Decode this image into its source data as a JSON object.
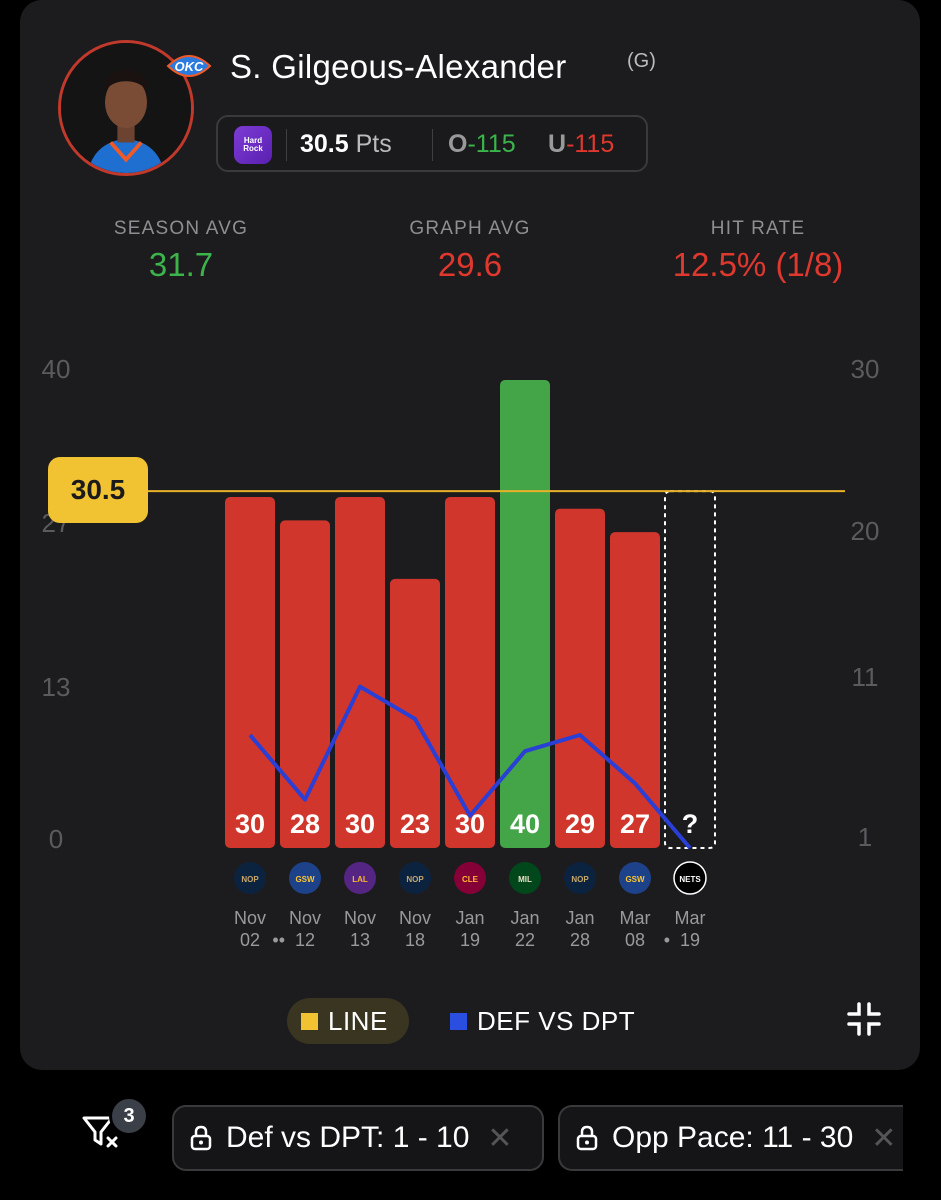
{
  "player": {
    "name": "S. Gilgeous-Alexander",
    "position": "(G)",
    "team_logo_text": "OKC"
  },
  "prop": {
    "sportsbook_logo_text": "Hard Rock",
    "line": "30.5",
    "stat": "Pts",
    "over_letter": "O",
    "over_odds": "-115",
    "under_letter": "U",
    "under_odds": "-115"
  },
  "stats": {
    "season_avg_label": "SEASON AVG",
    "season_avg_value": "31.7",
    "graph_avg_label": "GRAPH AVG",
    "graph_avg_value": "29.6",
    "hit_rate_label": "HIT RATE",
    "hit_rate_value": "12.5% (1/8)"
  },
  "chart_data": {
    "type": "bar",
    "categories": [
      "Nov 02",
      "Nov 12",
      "Nov 13",
      "Nov 18",
      "Jan 19",
      "Jan 22",
      "Jan 28",
      "Mar 08",
      "Mar 19"
    ],
    "dates": [
      {
        "month": "Nov",
        "day": "02",
        "dots": ""
      },
      {
        "month": "Nov",
        "day": "12",
        "dots": "••"
      },
      {
        "month": "Nov",
        "day": "13",
        "dots": ""
      },
      {
        "month": "Nov",
        "day": "18",
        "dots": ""
      },
      {
        "month": "Jan",
        "day": "19",
        "dots": ""
      },
      {
        "month": "Jan",
        "day": "22",
        "dots": ""
      },
      {
        "month": "Jan",
        "day": "28",
        "dots": ""
      },
      {
        "month": "Mar",
        "day": "08",
        "dots": ""
      },
      {
        "month": "Mar",
        "day": "19",
        "dots": "•"
      }
    ],
    "opponents": [
      "NOP",
      "GSW",
      "LAL",
      "NOP",
      "CLE",
      "MIL",
      "NOP",
      "GSW",
      "BKN"
    ],
    "series": [
      {
        "name": "Points",
        "values": [
          30,
          28,
          30,
          23,
          30,
          40,
          29,
          27,
          null
        ],
        "labels": [
          "30",
          "28",
          "30",
          "23",
          "30",
          "40",
          "29",
          "27",
          "?"
        ]
      },
      {
        "name": "DEF VS DPT",
        "values": [
          8,
          4,
          11,
          9,
          3,
          7,
          8,
          5,
          1
        ]
      }
    ],
    "line_value": 30.5,
    "line_label": "30.5",
    "ylim_left": [
      0,
      40
    ],
    "yticks_left": [
      "40",
      "27",
      "13",
      "0"
    ],
    "ylim_right": [
      1,
      30
    ],
    "yticks_right": [
      "30",
      "20",
      "11",
      "1"
    ],
    "colors": {
      "under": "#d0362c",
      "over": "#43a548",
      "line": "#e8b12a",
      "def": "#2a3fd6"
    }
  },
  "legend": {
    "line_label": "LINE",
    "line_color": "#f1c232",
    "def_label": "DEF VS DPT",
    "def_color": "#2a4fe0"
  },
  "filters": {
    "count": "3",
    "chips": [
      {
        "label": "Def vs DPT: 1 - 10"
      },
      {
        "label": "Opp Pace: 11 - 30"
      }
    ]
  }
}
